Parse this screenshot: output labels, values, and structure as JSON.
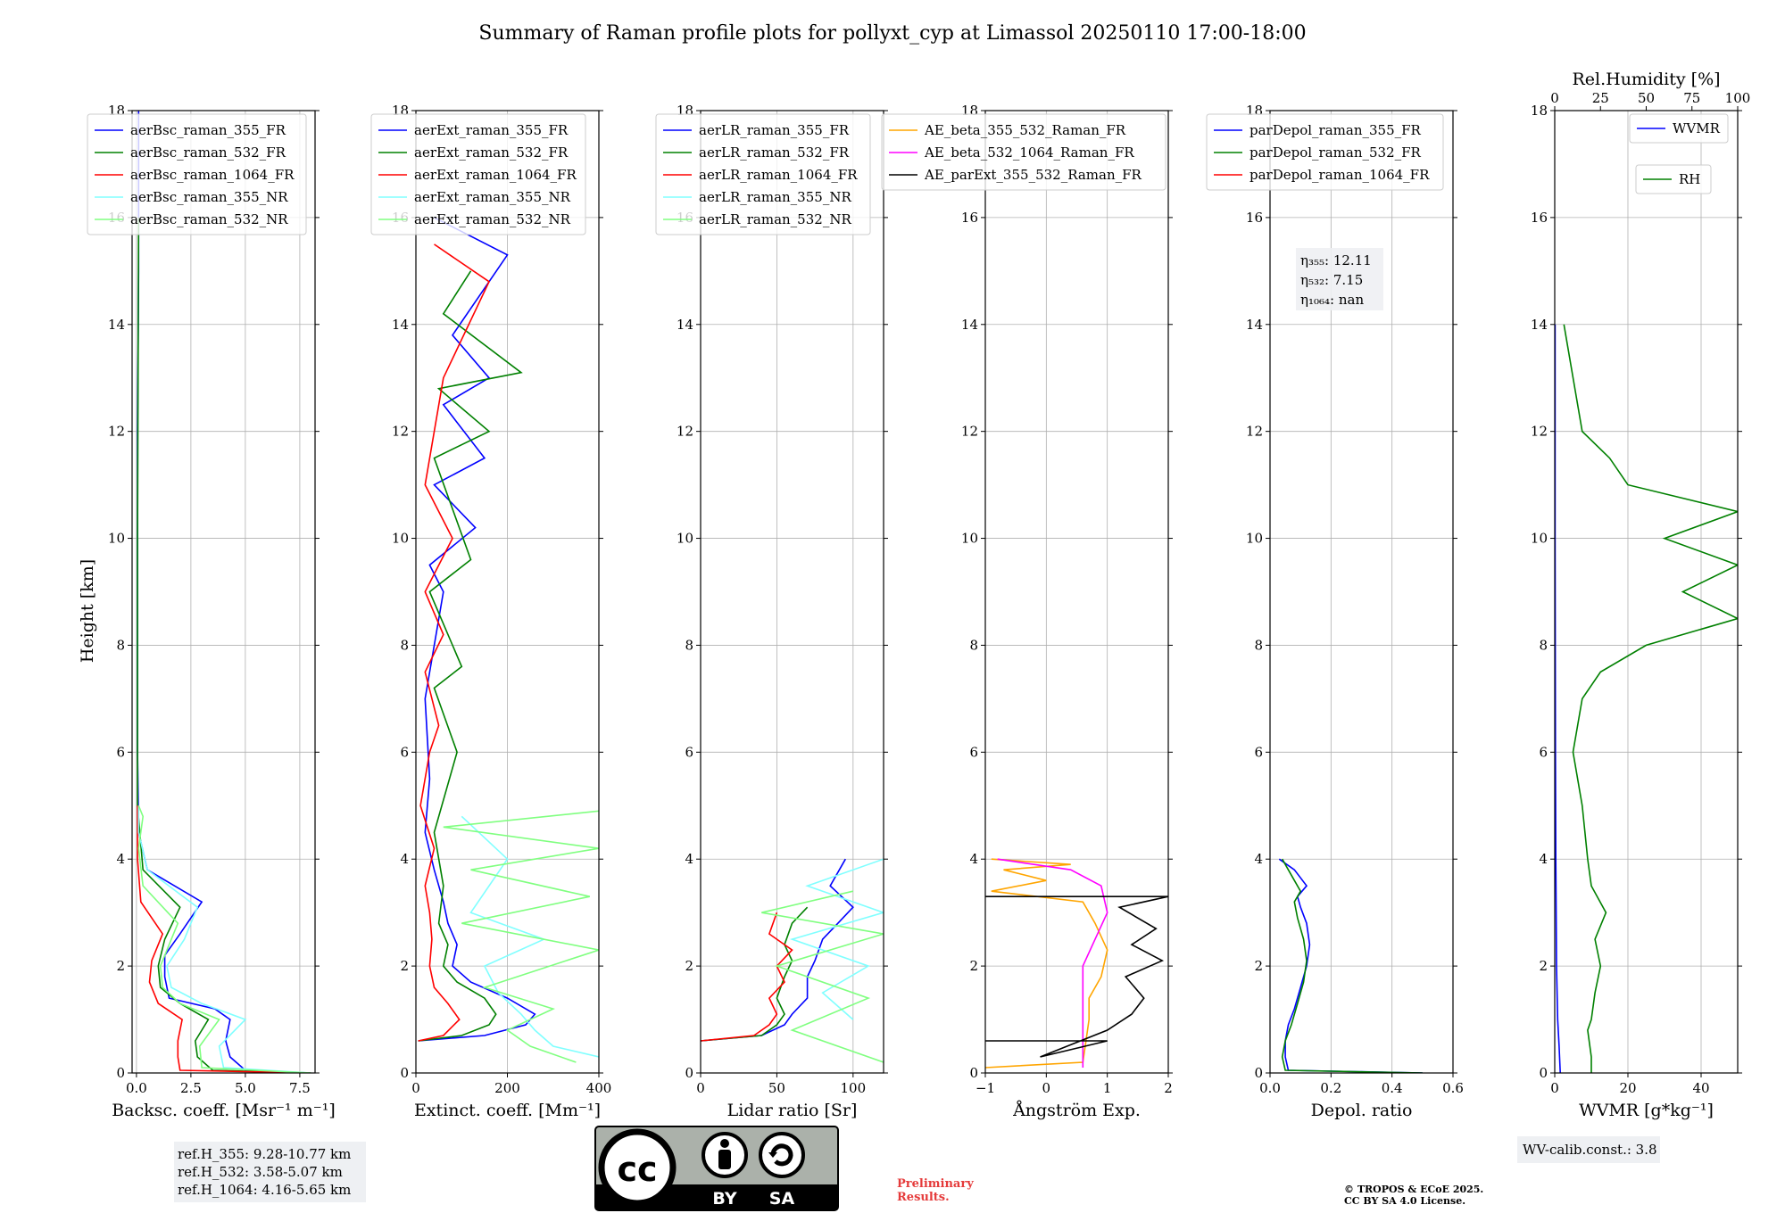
{
  "title": "Summary of Raman profile plots for pollyxt_cyp at Limassol 20250110 17:00-18:00",
  "ylabel": "Height [km]",
  "refs": [
    "ref.H_355: 9.28-10.77 km",
    "ref.H_532: 3.58-5.07 km",
    "ref.H_1064: 4.16-5.65 km"
  ],
  "wv_calib": "WV-calib.const.: 3.8",
  "preliminary": [
    "Preliminary",
    "Results."
  ],
  "copyright": [
    "© TROPOS & ECoE 2025.",
    "CC BY SA 4.0 License."
  ],
  "license_badge": {
    "by": "BY",
    "sa": "SA"
  },
  "colors": {
    "blue": "#0000ff",
    "green": "#008000",
    "red": "#ff0000",
    "cyan": "#80ffff",
    "lightgreen": "#80ff80",
    "orange": "#ffa500",
    "magenta": "#ff00ff",
    "black": "#000000"
  },
  "chart_data": [
    {
      "type": "line",
      "xlabel": "Backsc. coeff. [Msr⁻¹ m⁻¹]",
      "xlim": [
        -0.2,
        8.2
      ],
      "ylim": [
        0,
        18
      ],
      "xticks": [
        0.0,
        2.5,
        5.0,
        7.5
      ],
      "xticklabels": [
        "0.0",
        "2.5",
        "5.0",
        "7.5"
      ],
      "legend": "upper-left",
      "series": [
        {
          "name": "aerBsc_raman_355_FR",
          "color": "#0000ff",
          "x": [
            8.0,
            5.0,
            4.3,
            4.1,
            4.3,
            3.6,
            1.5,
            1.3,
            1.3,
            2.0,
            3.0,
            0.5,
            0.1,
            0.05,
            0.05,
            0.05,
            0.1,
            0.1
          ],
          "y": [
            0.0,
            0.05,
            0.3,
            0.6,
            1.0,
            1.2,
            1.4,
            1.8,
            2.2,
            2.6,
            3.2,
            3.8,
            4.5,
            6.0,
            9.0,
            12.0,
            15.0,
            18.0
          ]
        },
        {
          "name": "aerBsc_raman_532_FR",
          "color": "#008000",
          "x": [
            8.0,
            3.5,
            2.8,
            2.7,
            3.3,
            2.0,
            1.1,
            1.0,
            1.3,
            2.0,
            0.3,
            0.05,
            0.05,
            0.1
          ],
          "y": [
            0.0,
            0.05,
            0.3,
            0.6,
            1.0,
            1.3,
            1.6,
            2.0,
            2.5,
            3.1,
            3.8,
            5.0,
            10.0,
            16.0
          ]
        },
        {
          "name": "aerBsc_raman_1064_FR",
          "color": "#ff0000",
          "x": [
            8.0,
            2.0,
            1.9,
            1.9,
            2.1,
            1.0,
            0.6,
            0.7,
            1.2,
            0.2,
            0.05,
            0.05
          ],
          "y": [
            0.0,
            0.05,
            0.3,
            0.6,
            1.0,
            1.3,
            1.7,
            2.1,
            2.6,
            3.2,
            4.0,
            5.0
          ]
        },
        {
          "name": "aerBsc_raman_355_NR",
          "color": "#80ffff",
          "x": [
            8.0,
            4.0,
            3.8,
            5.0,
            3.0,
            1.6,
            1.4,
            2.2,
            2.8,
            0.5,
            0.1,
            0.1
          ],
          "y": [
            0.0,
            0.1,
            0.5,
            1.0,
            1.3,
            1.6,
            2.0,
            2.5,
            3.1,
            3.8,
            4.5,
            5.0
          ]
        },
        {
          "name": "aerBsc_raman_532_NR",
          "color": "#80ff80",
          "x": [
            8.0,
            3.0,
            2.9,
            3.8,
            2.0,
            1.2,
            1.1,
            1.9,
            0.3,
            0.1,
            0.3,
            0.1
          ],
          "y": [
            0.0,
            0.1,
            0.5,
            1.0,
            1.3,
            1.6,
            2.0,
            2.8,
            3.5,
            4.2,
            4.8,
            5.0
          ]
        }
      ]
    },
    {
      "type": "line",
      "xlabel": "Extinct. coeff. [Mm⁻¹]",
      "xlim": [
        0,
        400
      ],
      "ylim": [
        0,
        18
      ],
      "xticks": [
        0,
        200,
        400
      ],
      "xticklabels": [
        "0",
        "200",
        "400"
      ],
      "legend": "upper-left",
      "series": [
        {
          "name": "aerExt_raman_355_FR",
          "color": "#0000ff",
          "x": [
            5,
            150,
            240,
            260,
            200,
            120,
            80,
            90,
            70,
            60,
            40,
            20,
            30,
            20,
            60,
            30,
            130,
            40,
            150,
            60,
            160,
            80,
            200,
            40
          ],
          "y": [
            0.6,
            0.7,
            0.9,
            1.1,
            1.4,
            1.7,
            2.0,
            2.4,
            2.8,
            3.2,
            3.8,
            4.5,
            5.5,
            7.0,
            9.0,
            9.5,
            10.2,
            11.0,
            11.5,
            12.5,
            13.0,
            13.8,
            15.3,
            16.0
          ]
        },
        {
          "name": "aerExt_raman_532_FR",
          "color": "#008000",
          "x": [
            5,
            100,
            160,
            175,
            150,
            90,
            60,
            70,
            50,
            60,
            40,
            90,
            40,
            100,
            30,
            120,
            40,
            160,
            50,
            230,
            60,
            120
          ],
          "y": [
            0.6,
            0.7,
            0.9,
            1.1,
            1.4,
            1.7,
            2.0,
            2.4,
            2.8,
            3.5,
            4.5,
            6.0,
            7.2,
            7.6,
            9.0,
            9.6,
            11.5,
            12.0,
            12.8,
            13.1,
            14.2,
            15.0
          ]
        },
        {
          "name": "aerExt_raman_1064_FR",
          "color": "#ff0000",
          "x": [
            5,
            60,
            95,
            70,
            40,
            30,
            35,
            30,
            20,
            40,
            10,
            30,
            50,
            20,
            60,
            20,
            80,
            20,
            60,
            160,
            40
          ],
          "y": [
            0.6,
            0.7,
            1.0,
            1.3,
            1.6,
            2.0,
            2.5,
            3.0,
            3.5,
            4.2,
            5.0,
            6.0,
            6.5,
            7.5,
            8.2,
            9.0,
            10.0,
            11.0,
            13.0,
            14.8,
            15.5
          ]
        },
        {
          "name": "aerExt_raman_355_NR",
          "color": "#80ffff",
          "x": [
            400,
            300,
            260,
            230,
            180,
            150,
            280,
            120,
            200,
            100
          ],
          "y": [
            0.3,
            0.5,
            0.8,
            1.1,
            1.5,
            2.0,
            2.5,
            3.0,
            4.0,
            4.8
          ]
        },
        {
          "name": "aerExt_raman_532_NR",
          "color": "#80ff80",
          "x": [
            350,
            250,
            200,
            300,
            150,
            400,
            100,
            380,
            120,
            400,
            60,
            400
          ],
          "y": [
            0.2,
            0.5,
            0.8,
            1.2,
            1.6,
            2.3,
            2.8,
            3.3,
            3.8,
            4.2,
            4.6,
            4.9
          ]
        }
      ]
    },
    {
      "type": "line",
      "xlabel": "Lidar ratio [Sr]",
      "xlim": [
        0,
        120
      ],
      "ylim": [
        0,
        18
      ],
      "xticks": [
        0,
        50,
        100
      ],
      "xticklabels": [
        "0",
        "50",
        "100"
      ],
      "legend": "upper-left",
      "series": [
        {
          "name": "aerLR_raman_355_FR",
          "color": "#0000ff",
          "x": [
            0,
            40,
            55,
            60,
            70,
            70,
            75,
            80,
            90,
            100,
            85,
            95
          ],
          "y": [
            0.6,
            0.7,
            0.9,
            1.1,
            1.4,
            1.8,
            2.1,
            2.5,
            2.8,
            3.1,
            3.5,
            4.0
          ]
        },
        {
          "name": "aerLR_raman_532_FR",
          "color": "#008000",
          "x": [
            0,
            40,
            50,
            55,
            50,
            55,
            60,
            55,
            60,
            70
          ],
          "y": [
            0.6,
            0.7,
            0.9,
            1.1,
            1.4,
            1.8,
            2.1,
            2.4,
            2.8,
            3.1
          ]
        },
        {
          "name": "aerLR_raman_1064_FR",
          "color": "#ff0000",
          "x": [
            0,
            35,
            45,
            50,
            45,
            55,
            50,
            60,
            45,
            50
          ],
          "y": [
            0.6,
            0.7,
            0.9,
            1.1,
            1.4,
            1.7,
            2.0,
            2.3,
            2.6,
            3.0
          ]
        },
        {
          "name": "aerLR_raman_355_NR",
          "color": "#80ffff",
          "x": [
            100,
            80,
            110,
            60,
            120,
            70,
            120
          ],
          "y": [
            1.0,
            1.5,
            2.0,
            2.5,
            3.0,
            3.5,
            4.0
          ]
        },
        {
          "name": "aerLR_raman_532_NR",
          "color": "#80ff80",
          "x": [
            120,
            60,
            110,
            50,
            120,
            40,
            100
          ],
          "y": [
            0.2,
            0.8,
            1.4,
            2.0,
            2.6,
            3.0,
            3.4
          ]
        }
      ]
    },
    {
      "type": "line",
      "xlabel": "Ångström Exp.",
      "xlim": [
        -1,
        2
      ],
      "ylim": [
        0,
        18
      ],
      "xticks": [
        -1,
        0,
        1,
        2
      ],
      "xticklabels": [
        "−1",
        "0",
        "1",
        "2"
      ],
      "legend": "top",
      "series": [
        {
          "name": "AE_beta_355_532_Raman_FR",
          "color": "#ffa500",
          "x": [
            -1.0,
            0.6,
            0.65,
            0.7,
            0.7,
            0.9,
            1.0,
            0.8,
            0.6,
            -0.9,
            0.0,
            -0.7,
            0.4,
            -0.9
          ],
          "y": [
            0.1,
            0.2,
            0.6,
            1.0,
            1.4,
            1.8,
            2.3,
            2.8,
            3.2,
            3.4,
            3.6,
            3.8,
            3.9,
            4.0
          ]
        },
        {
          "name": "AE_beta_532_1064_Raman_FR",
          "color": "#ff00ff",
          "x": [
            0.6,
            0.6,
            0.6,
            0.6,
            0.6,
            0.8,
            1.0,
            0.9,
            0.4,
            -0.8
          ],
          "y": [
            0.1,
            0.5,
            1.0,
            1.5,
            2.0,
            2.5,
            3.0,
            3.5,
            3.8,
            4.0
          ]
        },
        {
          "name": "AE_parExt_355_532_Raman_FR",
          "color": "#000000",
          "x": [
            -1.0,
            1.0,
            -0.1,
            1.0,
            1.4,
            1.6,
            1.3,
            1.9,
            1.4,
            1.8,
            1.2,
            2.0,
            -1.0
          ],
          "y": [
            0.6,
            0.6,
            0.3,
            0.8,
            1.1,
            1.4,
            1.8,
            2.1,
            2.4,
            2.7,
            3.1,
            3.3,
            3.3
          ]
        }
      ]
    },
    {
      "type": "line",
      "xlabel": "Depol. ratio",
      "xlim": [
        0,
        0.6
      ],
      "ylim": [
        0,
        18
      ],
      "xticks": [
        0.0,
        0.2,
        0.4,
        0.6
      ],
      "xticklabels": [
        "0.0",
        "0.2",
        "0.4",
        "0.6"
      ],
      "legend": "upper-left",
      "annotations": [
        "η₃₅₅: 12.11",
        "η₅₃₂: 7.15",
        "η₁₀₆₄: nan"
      ],
      "series": [
        {
          "name": "parDepol_raman_355_FR",
          "color": "#0000ff",
          "x": [
            0.5,
            0.06,
            0.05,
            0.05,
            0.06,
            0.08,
            0.1,
            0.12,
            0.13,
            0.12,
            0.1,
            0.09,
            0.12,
            0.08,
            0.03
          ],
          "y": [
            0.0,
            0.05,
            0.3,
            0.6,
            0.9,
            1.2,
            1.6,
            2.0,
            2.4,
            2.8,
            3.1,
            3.3,
            3.5,
            3.8,
            4.0
          ]
        },
        {
          "name": "parDepol_raman_532_FR",
          "color": "#008000",
          "x": [
            0.5,
            0.05,
            0.04,
            0.05,
            0.07,
            0.09,
            0.11,
            0.12,
            0.11,
            0.09,
            0.08,
            0.1,
            0.07,
            0.04
          ],
          "y": [
            0.0,
            0.05,
            0.3,
            0.6,
            0.9,
            1.3,
            1.7,
            2.1,
            2.5,
            2.9,
            3.2,
            3.4,
            3.7,
            4.0
          ]
        },
        {
          "name": "parDepol_raman_1064_FR",
          "color": "#ff0000",
          "x": [],
          "y": []
        }
      ]
    },
    {
      "type": "line",
      "xlabel": "WVMR [g*kg⁻¹]",
      "xlim": [
        0,
        50
      ],
      "ylim": [
        0,
        18
      ],
      "xticks": [
        0,
        20,
        40
      ],
      "xticklabels": [
        "0",
        "20",
        "40"
      ],
      "legend": "upper-right",
      "top_axis": {
        "label": "Rel.Humidity [%]",
        "lim": [
          0,
          100
        ],
        "ticks": [
          0,
          25,
          50,
          75,
          100
        ],
        "ticklabels": [
          "0",
          "25",
          "50",
          "75",
          "100"
        ]
      },
      "series": [
        {
          "name": "WVMR",
          "color": "#0000ff",
          "axis": "bottom",
          "x": [
            1.5,
            1.2,
            0.8,
            0.5,
            0.4,
            0.3,
            0.2,
            0.1,
            0.1
          ],
          "y": [
            0.0,
            0.5,
            1.0,
            2.0,
            3.0,
            4.0,
            6.0,
            10.0,
            14.0
          ]
        },
        {
          "name": "RH",
          "color": "#008000",
          "axis": "top",
          "x": [
            20,
            20,
            18,
            20,
            22,
            25,
            22,
            28,
            20,
            18,
            15,
            10,
            15,
            25,
            50,
            100,
            70,
            100,
            60,
            100,
            40,
            30,
            15,
            5
          ],
          "y": [
            0.0,
            0.3,
            0.8,
            1.0,
            1.5,
            2.0,
            2.5,
            3.0,
            3.5,
            4.0,
            5.0,
            6.0,
            7.0,
            7.5,
            8.0,
            8.5,
            9.0,
            9.5,
            10.0,
            10.5,
            11.0,
            11.5,
            12.0,
            14.0
          ]
        }
      ]
    }
  ]
}
